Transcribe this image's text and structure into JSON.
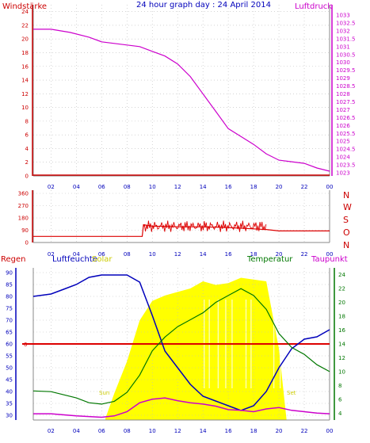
{
  "header": {
    "left_label": "Windstärke",
    "title": "24 hour graph day : 24 April 2014",
    "right_label": "Luftdruck"
  },
  "time_axis": {
    "labels": [
      "02",
      "04",
      "06",
      "08",
      "10",
      "12",
      "14",
      "16",
      "18",
      "20",
      "22",
      "00"
    ],
    "hour_start": 0.6,
    "hour_end": 24
  },
  "top_panel": {
    "y_left_ticks": [
      0,
      2,
      4,
      6,
      8,
      10,
      12,
      14,
      16,
      18,
      20,
      22,
      24
    ],
    "y_left_range": [
      0,
      25
    ],
    "y_right_ticks": [
      "1033",
      "1032.5",
      "1032",
      "1031.5",
      "1031",
      "1030.5",
      "1030",
      "1029.5",
      "1029",
      "1028.5",
      "1028",
      "1027.5",
      "1027",
      "1026.5",
      "1026",
      "1025.5",
      "1025",
      "1024.5",
      "1024",
      "1023.5",
      "1023"
    ],
    "y_right_range": [
      1013,
      1023
    ],
    "pressure_color": "#cc00cc",
    "axis_color_left": "#cc0000",
    "axis_color_right": "#cc00cc"
  },
  "mid_panel": {
    "y_ticks": [
      "360",
      "270",
      "180",
      "90",
      "0"
    ],
    "y_range": [
      0,
      360
    ],
    "compass_labels": [
      "N",
      "W",
      "S",
      "O",
      "N"
    ],
    "line_color": "#dd0000"
  },
  "bottom_panel": {
    "left_title": "Regen",
    "humidity_title": "Luftfeuchte",
    "solar_title": "Solar",
    "temp_title": "Temperatur",
    "dew_title": "Taupunkt",
    "rain_zero_label": "0",
    "sunrise_label": "Sun",
    "sunset_label": "Set",
    "y_left_ticks": [
      30,
      35,
      40,
      45,
      50,
      55,
      60,
      65,
      70,
      75,
      80,
      85,
      90
    ],
    "y_left_range": [
      28,
      92
    ],
    "y_right_ticks": [
      4,
      6,
      8,
      10,
      12,
      14,
      16,
      18,
      20,
      22,
      24
    ],
    "y_right_range": [
      3,
      25
    ],
    "humidity_color": "#0000bb",
    "temp_color": "#007700",
    "dew_color": "#cc00cc",
    "solar_color": "#ffff00",
    "rain_color": "#dd0000"
  },
  "chart_data": [
    {
      "type": "line",
      "title": "24 hour graph day : 24 April 2014",
      "series": [
        {
          "name": "Luftdruck",
          "x": [
            0.6,
            2,
            3.5,
            5,
            6,
            7,
            8,
            9,
            10,
            11,
            12,
            13,
            14,
            15,
            16,
            17,
            18,
            19,
            20,
            21,
            22,
            23,
            24
          ],
          "values": [
            1022.1,
            1022.1,
            1021.9,
            1021.6,
            1021.3,
            1021.2,
            1021.1,
            1021.0,
            1020.7,
            1020.4,
            1019.9,
            1019.1,
            1018.0,
            1016.9,
            1015.8,
            1015.3,
            1014.8,
            1014.2,
            1013.8,
            1013.7,
            1013.6,
            1013.3,
            1013.1
          ]
        }
      ],
      "ylim_left": [
        0,
        25
      ],
      "ylim_right": [
        1013,
        1023
      ],
      "left_axis_label": "Windstärke",
      "right_axis_label": "Luftdruck"
    },
    {
      "type": "line",
      "series": [
        {
          "name": "Wind direction",
          "x": [
            0.6,
            6,
            8,
            9.2,
            9.3,
            10,
            12,
            14,
            16,
            18,
            19,
            20,
            22,
            23,
            24
          ],
          "values": [
            45,
            45,
            45,
            45,
            130,
            120,
            115,
            115,
            110,
            100,
            95,
            85,
            85,
            85,
            85
          ]
        }
      ],
      "ylim": [
        0,
        360
      ]
    },
    {
      "type": "line",
      "series": [
        {
          "name": "Luftfeuchte",
          "x": [
            0.6,
            2,
            3,
            4,
            5,
            6,
            7,
            8,
            9,
            10,
            11,
            12,
            13,
            14,
            15,
            16,
            17,
            18,
            19,
            20,
            21,
            22,
            23,
            24
          ],
          "values": [
            80,
            81,
            83,
            85,
            88,
            89,
            89,
            89,
            86,
            72,
            57,
            50,
            43,
            38,
            36,
            34,
            32,
            34,
            40,
            50,
            58,
            62,
            63,
            66
          ]
        },
        {
          "name": "Temperatur",
          "x": [
            0.6,
            2,
            4,
            5,
            6,
            7,
            8,
            9,
            10,
            11,
            12,
            13,
            14,
            15,
            16,
            17,
            18,
            19,
            20,
            21,
            22,
            23,
            24
          ],
          "values": [
            7.2,
            7.1,
            6.2,
            5.5,
            5.3,
            5.7,
            7.0,
            9.5,
            13.0,
            15.0,
            16.5,
            17.5,
            18.5,
            20.0,
            21.0,
            22.0,
            21.0,
            19.0,
            15.5,
            13.5,
            12.5,
            11.0,
            10.0
          ]
        },
        {
          "name": "Taupunkt",
          "x": [
            0.6,
            2,
            4,
            6,
            7,
            8,
            9,
            10,
            11,
            12,
            13,
            14,
            15,
            16,
            17,
            18,
            19,
            20,
            21,
            22,
            23,
            24
          ],
          "values": [
            3.9,
            3.9,
            3.6,
            3.4,
            3.6,
            4.2,
            5.5,
            6.0,
            6.2,
            5.8,
            5.5,
            5.3,
            5.0,
            4.5,
            4.4,
            4.2,
            4.6,
            4.8,
            4.4,
            4.2,
            4.0,
            3.9
          ]
        },
        {
          "name": "Solar",
          "x": [
            6.3,
            7,
            8,
            9,
            10,
            11,
            12,
            13,
            14,
            15,
            16,
            17,
            18,
            19,
            20,
            20.6
          ],
          "values": [
            10,
            150,
            330,
            560,
            670,
            700,
            720,
            740,
            780,
            760,
            770,
            800,
            790,
            780,
            400,
            0
          ]
        }
      ],
      "ylim_left": [
        28,
        92
      ],
      "ylim_right": [
        3,
        25
      ]
    }
  ]
}
